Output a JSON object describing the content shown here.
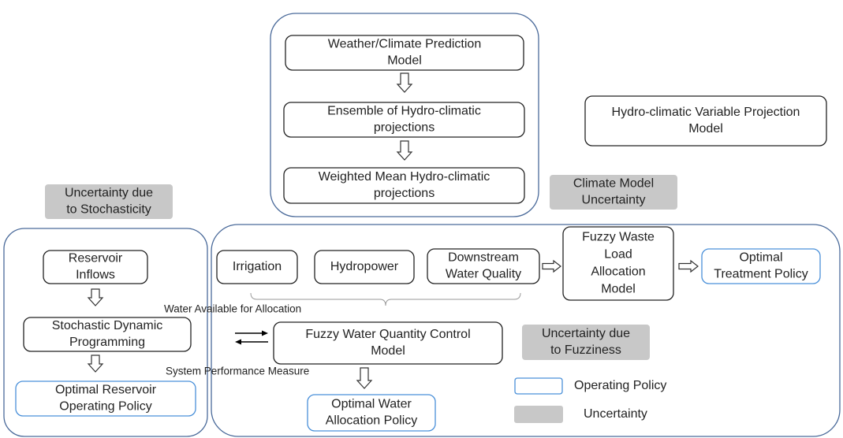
{
  "boxes": [
    {
      "lines": [
        "Weather/Climate Prediction",
        "Model"
      ]
    },
    {
      "lines": [
        "Ensemble of Hydro-climatic",
        "projections"
      ]
    },
    {
      "lines": [
        "Weighted Mean Hydro-climatic",
        "projections"
      ]
    },
    {
      "lines": [
        "Hydro-climatic Variable Projection",
        "Model"
      ]
    },
    {
      "lines": [
        "Climate Model",
        "Uncertainty"
      ]
    },
    {
      "lines": [
        "Uncertainty due",
        "to Stochasticity"
      ]
    },
    {
      "lines": [
        "Reservoir",
        "Inflows"
      ]
    },
    {
      "lines": [
        "Stochastic Dynamic",
        "Programming"
      ]
    },
    {
      "lines": [
        "Optimal Reservoir",
        "Operating Policy"
      ]
    },
    {
      "lines": [
        "Irrigation"
      ]
    },
    {
      "lines": [
        "Hydropower"
      ]
    },
    {
      "lines": [
        "Downstream",
        "Water Quality"
      ]
    },
    {
      "lines": [
        "Fuzzy Waste",
        "Load",
        "Allocation",
        "Model"
      ]
    },
    {
      "lines": [
        "Optimal",
        "Treatment Policy"
      ]
    },
    {
      "lines": [
        "Fuzzy Water Quantity Control",
        "Model"
      ]
    },
    {
      "lines": [
        "Uncertainty due",
        "to Fuzziness"
      ]
    },
    {
      "lines": [
        "Optimal Water",
        "Allocation Policy"
      ]
    }
  ],
  "labels": {
    "water_available": "Water Available for Allocation",
    "system_performance": "System Performance Measure"
  },
  "legend": [
    {
      "label": "Operating Policy"
    },
    {
      "label": "Uncertainty"
    }
  ]
}
